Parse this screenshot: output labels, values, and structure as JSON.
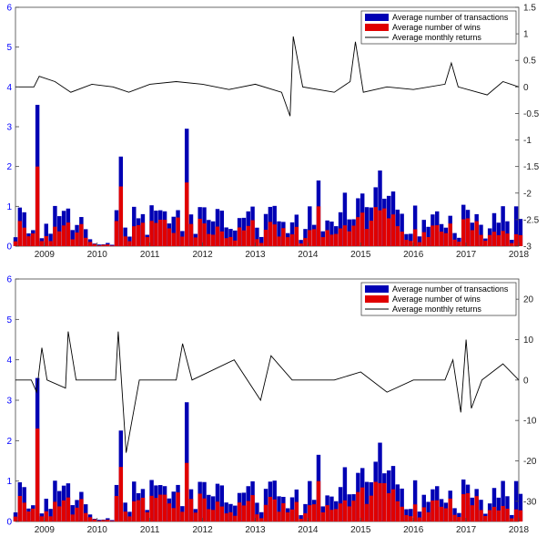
{
  "colors": {
    "transactions": "#0000b4",
    "wins": "#e00000",
    "returns": "#000000",
    "left_axis": "#0000ff",
    "right_axis": "#222222"
  },
  "chart_data": [
    {
      "type": "bar",
      "overlay": "line",
      "x_ticks": [
        "2009",
        "2010",
        "2011",
        "2012",
        "2013",
        "2014",
        "2015",
        "2016",
        "2017",
        "2018"
      ],
      "x_range": [
        2008.45,
        2018.0
      ],
      "ylim_left": [
        0,
        6
      ],
      "ylim_right": [
        -3,
        1.5
      ],
      "y_ticks_left": [
        0,
        1,
        2,
        3,
        4,
        5,
        6
      ],
      "y_ticks_right": [
        -3,
        -2.5,
        -2,
        -1.5,
        -1,
        -0.5,
        0,
        0.5,
        1,
        1.5
      ],
      "legend_position": "top-right",
      "series": [
        {
          "name": "Average number of transactions",
          "kind": "bar"
        },
        {
          "name": "Average number of wins",
          "kind": "bar"
        },
        {
          "name": "Average monthly returns",
          "kind": "line"
        }
      ],
      "highlights": [
        {
          "x": 2008.88,
          "transactions": 3.55,
          "wins": 2.0
        },
        {
          "x": 2010.45,
          "transactions": 2.25,
          "wins": 1.5
        },
        {
          "x": 2011.72,
          "transactions": 2.95,
          "wins": 1.6
        },
        {
          "x": 2014.2,
          "transactions": 1.65,
          "wins": 1.0
        },
        {
          "x": 2015.4,
          "transactions": 1.9,
          "wins": 0.9
        },
        {
          "x": 2017.95,
          "transactions": 1.0,
          "wins": 0.3
        }
      ],
      "returns": [
        [
          2008.45,
          0.0
        ],
        [
          2008.8,
          0.0
        ],
        [
          2008.9,
          0.2
        ],
        [
          2009.2,
          0.1
        ],
        [
          2009.5,
          -0.1
        ],
        [
          2009.9,
          0.05
        ],
        [
          2010.3,
          0.0
        ],
        [
          2010.6,
          -0.1
        ],
        [
          2011.0,
          0.05
        ],
        [
          2011.5,
          0.1
        ],
        [
          2012.0,
          0.05
        ],
        [
          2012.5,
          -0.05
        ],
        [
          2013.0,
          0.05
        ],
        [
          2013.5,
          -0.1
        ],
        [
          2013.66,
          -0.55
        ],
        [
          2013.72,
          0.95
        ],
        [
          2013.9,
          0.0
        ],
        [
          2014.5,
          -0.1
        ],
        [
          2014.8,
          0.1
        ],
        [
          2014.9,
          0.85
        ],
        [
          2015.05,
          -0.1
        ],
        [
          2015.5,
          0.0
        ],
        [
          2016.0,
          -0.05
        ],
        [
          2016.6,
          0.05
        ],
        [
          2016.72,
          0.45
        ],
        [
          2016.85,
          0.0
        ],
        [
          2017.4,
          -0.15
        ],
        [
          2017.7,
          0.1
        ],
        [
          2018.0,
          0.0
        ]
      ]
    },
    {
      "type": "bar",
      "overlay": "line",
      "x_ticks": [
        "2009",
        "2010",
        "2011",
        "2012",
        "2013",
        "2014",
        "2015",
        "2016",
        "2017",
        "2018"
      ],
      "x_range": [
        2008.45,
        2018.0
      ],
      "ylim_left": [
        0,
        6
      ],
      "ylim_right": [
        -35,
        25
      ],
      "y_ticks_left": [
        0,
        1,
        2,
        3,
        4,
        5,
        6
      ],
      "y_ticks_right": [
        -30,
        -20,
        -10,
        0,
        10,
        20
      ],
      "legend_position": "top-right",
      "series": [
        {
          "name": "Average number of transactions",
          "kind": "bar"
        },
        {
          "name": "Average number of wins",
          "kind": "bar"
        },
        {
          "name": "Average monthly returns",
          "kind": "line"
        }
      ],
      "highlights": [
        {
          "x": 2008.88,
          "transactions": 3.55,
          "wins": 2.3
        },
        {
          "x": 2010.45,
          "transactions": 2.25,
          "wins": 1.35
        },
        {
          "x": 2011.72,
          "transactions": 2.95,
          "wins": 1.45
        },
        {
          "x": 2014.2,
          "transactions": 1.65,
          "wins": 1.0
        },
        {
          "x": 2015.4,
          "transactions": 1.95,
          "wins": 0.95
        },
        {
          "x": 2017.95,
          "transactions": 1.0,
          "wins": 0.3
        }
      ],
      "returns": [
        [
          2008.45,
          0.0
        ],
        [
          2008.75,
          0.0
        ],
        [
          2008.85,
          -3.0
        ],
        [
          2008.95,
          8.0
        ],
        [
          2009.05,
          0.0
        ],
        [
          2009.4,
          -2.0
        ],
        [
          2009.45,
          12.0
        ],
        [
          2009.6,
          0.0
        ],
        [
          2010.0,
          0.0
        ],
        [
          2010.35,
          0.0
        ],
        [
          2010.4,
          12.0
        ],
        [
          2010.55,
          -18.0
        ],
        [
          2010.8,
          0.0
        ],
        [
          2011.5,
          0.0
        ],
        [
          2011.62,
          9.0
        ],
        [
          2011.8,
          0.0
        ],
        [
          2012.6,
          5.0
        ],
        [
          2013.1,
          -5.0
        ],
        [
          2013.3,
          6.0
        ],
        [
          2013.7,
          0.0
        ],
        [
          2014.5,
          0.0
        ],
        [
          2015.0,
          2.0
        ],
        [
          2015.5,
          -3.0
        ],
        [
          2016.0,
          0.0
        ],
        [
          2016.6,
          0.0
        ],
        [
          2016.75,
          5.0
        ],
        [
          2016.9,
          -8.0
        ],
        [
          2017.0,
          10.0
        ],
        [
          2017.1,
          -7.0
        ],
        [
          2017.3,
          0.0
        ],
        [
          2017.7,
          4.0
        ],
        [
          2018.0,
          0.0
        ]
      ]
    }
  ]
}
